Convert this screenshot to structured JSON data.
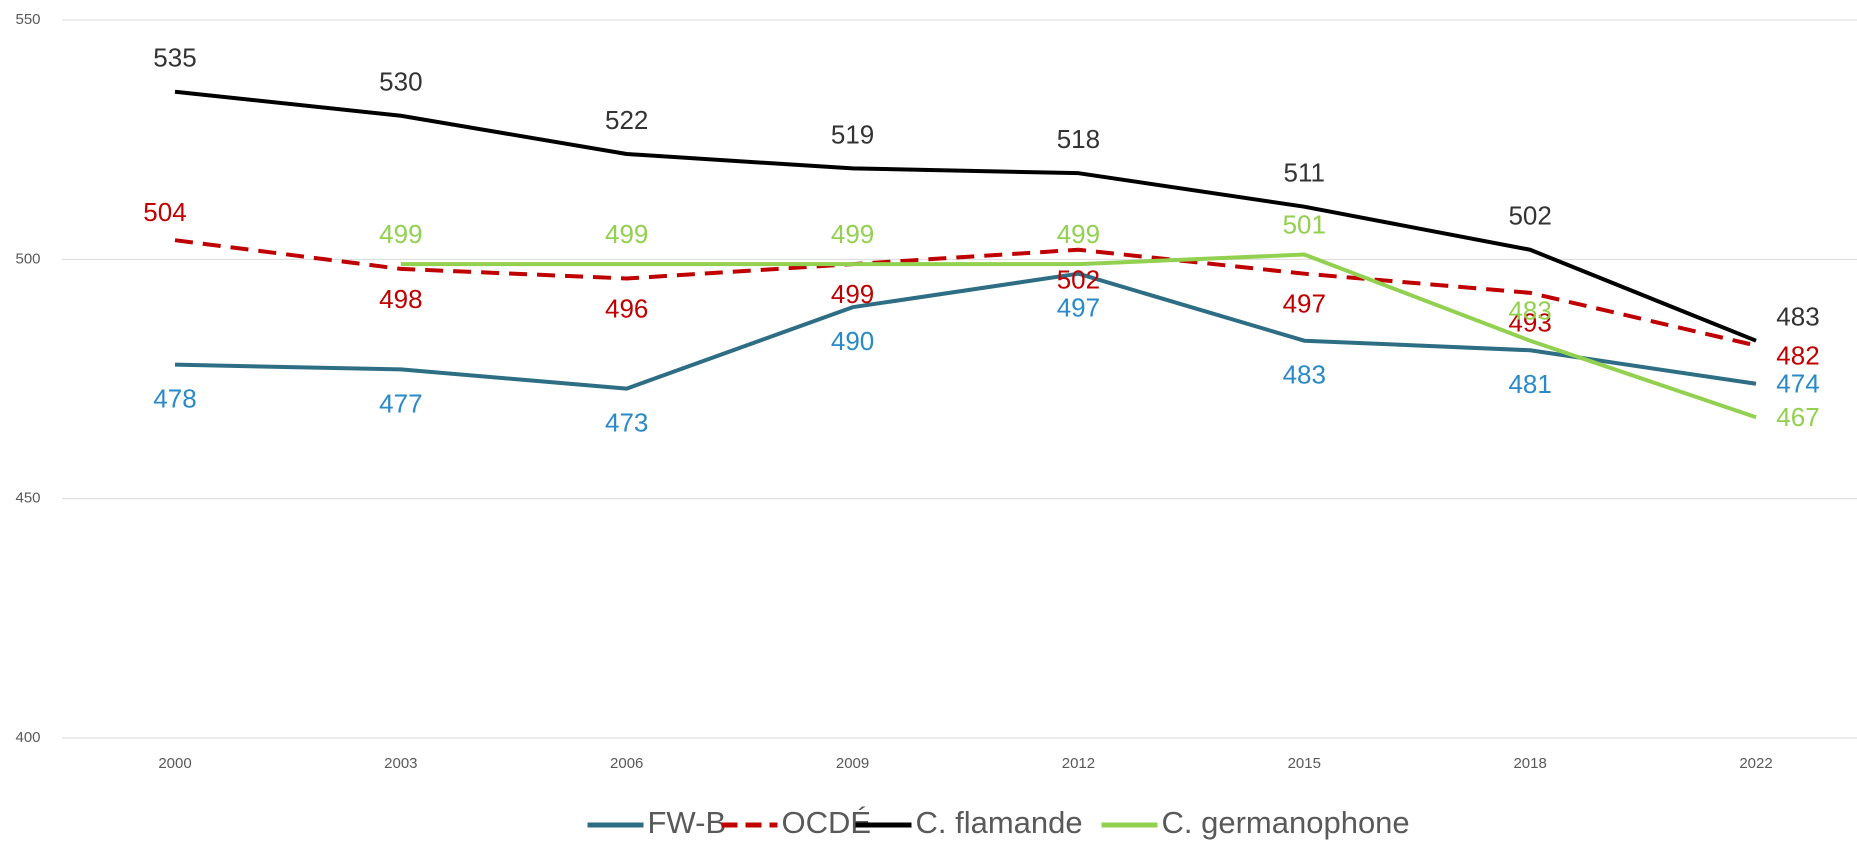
{
  "chart_data": {
    "type": "line",
    "categories": [
      "2000",
      "2003",
      "2006",
      "2009",
      "2012",
      "2015",
      "2018",
      "2022"
    ],
    "series": [
      {
        "name": "FW-B",
        "color": "#2e6e85",
        "label_color": "#2a8ac8",
        "dash": false,
        "values": [
          478,
          477,
          473,
          490,
          497,
          483,
          481,
          474
        ]
      },
      {
        "name": "OCDÉ",
        "color": "#c00000",
        "label_color": "#c00000",
        "dash": true,
        "values": [
          504,
          498,
          496,
          499,
          502,
          497,
          493,
          482
        ]
      },
      {
        "name": "C. flamande",
        "color": "#000000",
        "label_color": "#333333",
        "dash": false,
        "values": [
          535,
          530,
          522,
          519,
          518,
          511,
          502,
          483
        ]
      },
      {
        "name": "C. germanophone",
        "color": "#92d050",
        "label_color": "#92d050",
        "dash": false,
        "values": [
          null,
          499,
          499,
          499,
          499,
          501,
          483,
          467
        ]
      }
    ],
    "ylim": [
      400,
      550
    ],
    "yticks": [
      400,
      450,
      500,
      550
    ],
    "grid": true,
    "legend": "bottom"
  }
}
